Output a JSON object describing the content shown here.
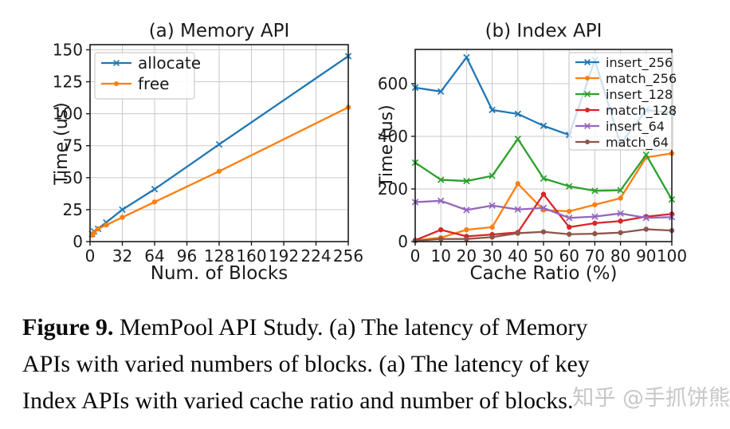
{
  "caption": {
    "figure_label": "Figure 9.",
    "line1_rest": " MemPool API Study. (a) The latency of Memory",
    "line2": "APIs with varied numbers of blocks. (a) The latency of key",
    "line3": "Index APIs with varied cache ratio and number of blocks."
  },
  "watermark": {
    "text": "知乎 @手抓饼熊"
  },
  "colors": {
    "blue": "#1f77b4",
    "orange": "#ff7f0e",
    "green": "#2ca02c",
    "red": "#d62728",
    "purple": "#9467bd",
    "brown": "#8c564b",
    "grid": "#c9c9c9",
    "spine": "#1a1a1a",
    "text": "#1a1a1a"
  },
  "chart_data": [
    {
      "type": "line",
      "title": "(a) Memory API",
      "xlabel": "Num. of Blocks",
      "ylabel": "Time (us)",
      "x": [
        2,
        4,
        8,
        16,
        32,
        64,
        128,
        256
      ],
      "xlim": [
        0,
        256
      ],
      "ylim": [
        0,
        154
      ],
      "xticks": [
        0,
        32,
        64,
        96,
        128,
        160,
        192,
        224,
        256
      ],
      "yticks": [
        0,
        25,
        50,
        75,
        100,
        125,
        150
      ],
      "grid": true,
      "legend_position": "upper left",
      "series": [
        {
          "name": "allocate",
          "color": "#1f77b4",
          "marker": "x",
          "values": [
            6,
            8,
            10,
            15,
            25,
            41,
            76,
            145
          ]
        },
        {
          "name": "free",
          "color": "#ff7f0e",
          "marker": "o",
          "values": [
            5,
            7,
            10,
            13,
            19,
            31,
            55,
            105
          ]
        }
      ]
    },
    {
      "type": "line",
      "title": "(b) Index API",
      "xlabel": "Cache Ratio (%)",
      "ylabel": "Time (us)",
      "x": [
        0,
        10,
        20,
        30,
        40,
        50,
        60,
        70,
        80,
        90,
        100
      ],
      "xlim": [
        0,
        100
      ],
      "ylim": [
        0,
        730
      ],
      "xticks": [
        0,
        10,
        20,
        30,
        40,
        50,
        60,
        70,
        80,
        90,
        100
      ],
      "yticks": [
        0,
        200,
        400,
        600
      ],
      "grid": true,
      "legend_position": "upper right",
      "series": [
        {
          "name": "insert_256",
          "color": "#1f77b4",
          "marker": "x",
          "values": [
            585,
            570,
            700,
            500,
            485,
            440,
            405,
            690,
            370,
            500,
            490
          ]
        },
        {
          "name": "match_256",
          "color": "#ff7f0e",
          "marker": "o",
          "values": [
            5,
            15,
            45,
            55,
            220,
            120,
            115,
            140,
            165,
            320,
            335
          ]
        },
        {
          "name": "insert_128",
          "color": "#2ca02c",
          "marker": "x",
          "values": [
            300,
            235,
            230,
            250,
            390,
            240,
            210,
            193,
            195,
            330,
            160
          ]
        },
        {
          "name": "match_128",
          "color": "#d62728",
          "marker": "o",
          "values": [
            5,
            45,
            20,
            27,
            35,
            180,
            55,
            70,
            78,
            95,
            105
          ]
        },
        {
          "name": "insert_64",
          "color": "#9467bd",
          "marker": "x",
          "values": [
            150,
            155,
            120,
            137,
            122,
            128,
            90,
            95,
            107,
            90,
            93
          ]
        },
        {
          "name": "match_64",
          "color": "#8c564b",
          "marker": "o",
          "values": [
            3,
            10,
            10,
            17,
            32,
            37,
            28,
            30,
            34,
            47,
            42
          ]
        }
      ]
    }
  ]
}
